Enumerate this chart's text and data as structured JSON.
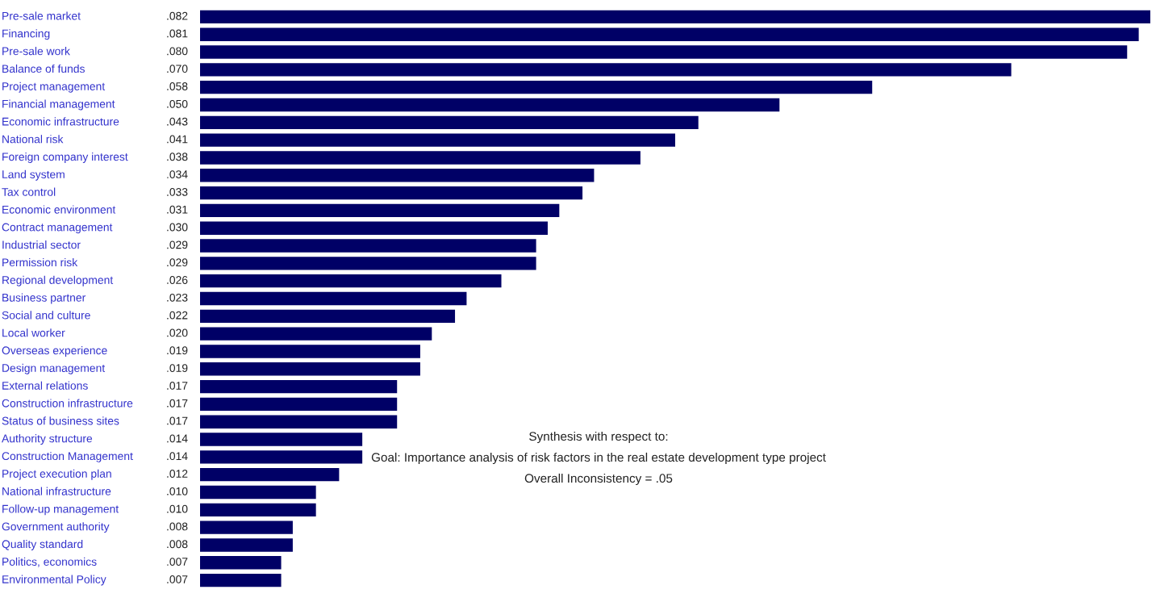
{
  "chart_data": {
    "type": "bar",
    "orientation": "horizontal",
    "color": "#000066",
    "categories": [
      "Pre-sale market",
      "Financing",
      "Pre-sale work",
      "Balance of funds",
      "Project management",
      "Financial management",
      "Economic infrastructure",
      "National risk",
      "Foreign company interest",
      "Land system",
      "Tax control",
      "Economic environment",
      "Contract management",
      "Industrial sector",
      "Permission risk",
      "Regional development",
      "Business partner",
      "Social and culture",
      "Local worker",
      "Overseas experience",
      "Design management",
      "External relations",
      "Construction infrastructure",
      "Status of business sites",
      "Authority structure",
      "Construction Management",
      "Project execution plan",
      "National infrastructure",
      "Follow-up management",
      "Government authority",
      "Quality standard",
      "Politics, economics",
      "Environmental Policy"
    ],
    "values": [
      0.082,
      0.081,
      0.08,
      0.07,
      0.058,
      0.05,
      0.043,
      0.041,
      0.038,
      0.034,
      0.033,
      0.031,
      0.03,
      0.029,
      0.029,
      0.026,
      0.023,
      0.022,
      0.02,
      0.019,
      0.019,
      0.017,
      0.017,
      0.017,
      0.014,
      0.014,
      0.012,
      0.01,
      0.01,
      0.008,
      0.008,
      0.007,
      0.007
    ],
    "value_labels": [
      ".082",
      ".081",
      ".080",
      ".070",
      ".058",
      ".050",
      ".043",
      ".041",
      ".038",
      ".034",
      ".033",
      ".031",
      ".030",
      ".029",
      ".029",
      ".026",
      ".023",
      ".022",
      ".020",
      ".019",
      ".019",
      ".017",
      ".017",
      ".017",
      ".014",
      ".014",
      ".012",
      ".010",
      ".010",
      ".008",
      ".008",
      ".007",
      ".007"
    ],
    "annotations": [
      "Synthesis with respect to:",
      "Goal: Importance analysis of risk factors in the real estate development type project",
      "Overall Inconsistency = .05"
    ]
  }
}
